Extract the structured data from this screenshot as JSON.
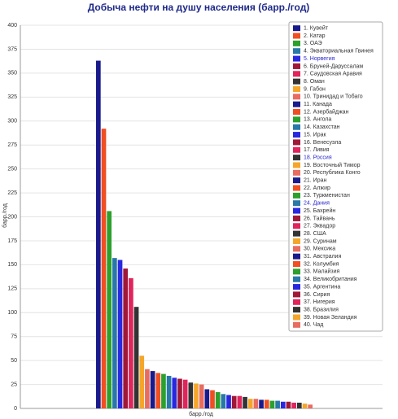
{
  "chart_data": {
    "type": "bar",
    "title": "Добыча нефти на душу населения (барр./год)",
    "xlabel": "барр./год",
    "ylabel": "барр./год",
    "categories": [
      null
    ],
    "ylim": [
      0,
      400
    ],
    "yticks": [
      0,
      25,
      50,
      75,
      100,
      125,
      150,
      175,
      200,
      225,
      250,
      275,
      300,
      325,
      350,
      375,
      400
    ],
    "grid": true,
    "legend": "top-right",
    "legend_highlight": {
      "color": "#2a2acc",
      "series": [
        4,
        17,
        23
      ]
    },
    "series": [
      {
        "name": "1. Кувейт",
        "color": "#1a1a8c",
        "values": [
          363
        ]
      },
      {
        "name": "2. Катар",
        "color": "#f04e23",
        "values": [
          292
        ]
      },
      {
        "name": "3. ОАЭ",
        "color": "#2ca02c",
        "values": [
          206
        ]
      },
      {
        "name": "4. Экваториальная Гвинея",
        "color": "#2878a8",
        "values": [
          157
        ]
      },
      {
        "name": "5. Норвегия",
        "color": "#2828e0",
        "values": [
          155
        ]
      },
      {
        "name": "6. Бруней-Даруссалам",
        "color": "#a01838",
        "values": [
          146
        ]
      },
      {
        "name": "7. Саудовская Аравия",
        "color": "#e0245c",
        "values": [
          136
        ]
      },
      {
        "name": "8. Оман",
        "color": "#333333",
        "values": [
          106
        ]
      },
      {
        "name": "9. Габон",
        "color": "#f4a62a",
        "values": [
          55
        ]
      },
      {
        "name": "10. Тринидад и Тобаго",
        "color": "#e86c60",
        "values": [
          41
        ]
      },
      {
        "name": "11. Канада",
        "color": "#1a1a8c",
        "values": [
          39
        ]
      },
      {
        "name": "12. Азербайджан",
        "color": "#f04e23",
        "values": [
          37
        ]
      },
      {
        "name": "13. Ангола",
        "color": "#2ca02c",
        "values": [
          36
        ]
      },
      {
        "name": "14. Казахстан",
        "color": "#2878a8",
        "values": [
          34
        ]
      },
      {
        "name": "15. Ирак",
        "color": "#2828e0",
        "values": [
          32
        ]
      },
      {
        "name": "16. Венесуэла",
        "color": "#a01838",
        "values": [
          31
        ]
      },
      {
        "name": "17. Ливия",
        "color": "#e0245c",
        "values": [
          30
        ]
      },
      {
        "name": "18. Россия",
        "color": "#333333",
        "values": [
          27
        ]
      },
      {
        "name": "19. Восточный Тимор",
        "color": "#f4a62a",
        "values": [
          26
        ]
      },
      {
        "name": "20. Республика Конго",
        "color": "#e86c60",
        "values": [
          25
        ]
      },
      {
        "name": "21. Иран",
        "color": "#1a1a8c",
        "values": [
          20
        ]
      },
      {
        "name": "22. Алжир",
        "color": "#f04e23",
        "values": [
          19
        ]
      },
      {
        "name": "23. Туркменистан",
        "color": "#2ca02c",
        "values": [
          17
        ]
      },
      {
        "name": "24. Дания",
        "color": "#2878a8",
        "values": [
          15
        ]
      },
      {
        "name": "25. Бахрейн",
        "color": "#2828e0",
        "values": [
          14
        ]
      },
      {
        "name": "26. Тайвань",
        "color": "#a01838",
        "values": [
          13
        ]
      },
      {
        "name": "27. Эквадор",
        "color": "#e0245c",
        "values": [
          13
        ]
      },
      {
        "name": "28. США",
        "color": "#333333",
        "values": [
          12
        ]
      },
      {
        "name": "29. Суринам",
        "color": "#f4a62a",
        "values": [
          10
        ]
      },
      {
        "name": "30. Мексика",
        "color": "#e86c60",
        "values": [
          10
        ]
      },
      {
        "name": "31. Австралия",
        "color": "#1a1a8c",
        "values": [
          9
        ]
      },
      {
        "name": "32. Колумбия",
        "color": "#f04e23",
        "values": [
          9
        ]
      },
      {
        "name": "33. Малайзия",
        "color": "#2ca02c",
        "values": [
          8
        ]
      },
      {
        "name": "34. Великобритания",
        "color": "#2878a8",
        "values": [
          8
        ]
      },
      {
        "name": "35. Аргентина",
        "color": "#2828e0",
        "values": [
          7
        ]
      },
      {
        "name": "36. Сирия",
        "color": "#a01838",
        "values": [
          7
        ]
      },
      {
        "name": "37. Нигерия",
        "color": "#e0245c",
        "values": [
          6
        ]
      },
      {
        "name": "38. Бразилия",
        "color": "#333333",
        "values": [
          6
        ]
      },
      {
        "name": "39. Новая Зеландия",
        "color": "#f4a62a",
        "values": [
          5
        ]
      },
      {
        "name": "40. Чад",
        "color": "#e86c60",
        "values": [
          4
        ]
      }
    ]
  }
}
